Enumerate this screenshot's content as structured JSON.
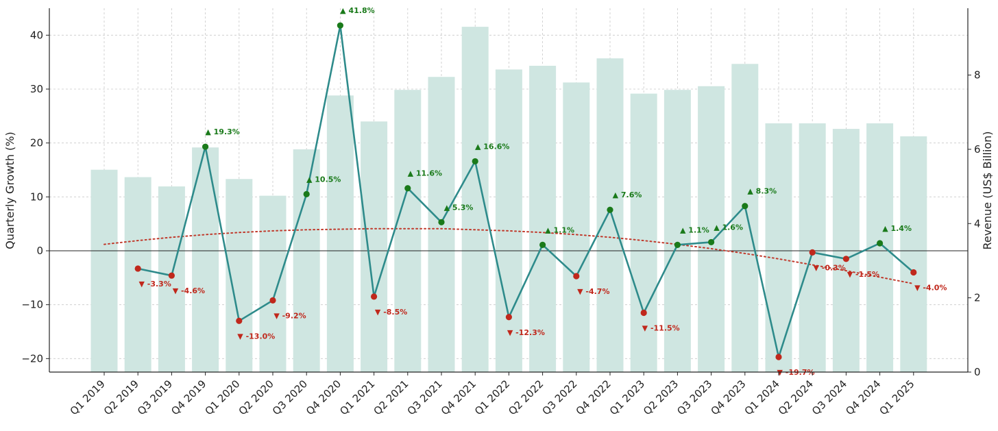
{
  "chart_data": {
    "type": "bar+line",
    "categories": [
      "Q1 2019",
      "Q2 2019",
      "Q3 2019",
      "Q4 2019",
      "Q1 2020",
      "Q2 2020",
      "Q3 2020",
      "Q4 2020",
      "Q1 2021",
      "Q2 2021",
      "Q3 2021",
      "Q4 2021",
      "Q1 2022",
      "Q2 2022",
      "Q3 2022",
      "Q4 2022",
      "Q1 2023",
      "Q2 2023",
      "Q3 2023",
      "Q4 2023",
      "Q1 2024",
      "Q2 2024",
      "Q3 2024",
      "Q4 2024",
      "Q1 2025"
    ],
    "series": [
      {
        "kind": "bar",
        "axis": "right",
        "values": [
          5.45,
          5.25,
          5.0,
          6.05,
          5.2,
          4.75,
          6.0,
          7.45,
          6.75,
          7.6,
          7.95,
          9.3,
          8.15,
          8.25,
          7.8,
          8.45,
          7.5,
          7.6,
          7.7,
          8.3,
          6.7,
          6.7,
          6.55,
          6.7,
          6.35
        ],
        "color": "#cfe6e1"
      },
      {
        "kind": "line",
        "axis": "left",
        "values": [
          null,
          -3.3,
          -4.6,
          19.3,
          -13.0,
          -9.2,
          10.5,
          41.8,
          -8.5,
          11.6,
          5.3,
          16.6,
          -12.3,
          1.1,
          -4.7,
          7.6,
          -11.5,
          1.1,
          1.6,
          8.3,
          -19.7,
          -0.3,
          -1.5,
          1.4,
          -4.0
        ],
        "labels": [
          "",
          "▼ -3.3%",
          "▼ -4.6%",
          "▲ 19.3%",
          "▼ -13.0%",
          "▼ -9.2%",
          "▲ 10.5%",
          "▲ 41.8%",
          "▼ -8.5%",
          "▲ 11.6%",
          "▲ 5.3%",
          "▲ 16.6%",
          "▼ -12.3%",
          "▲ 1.1%",
          "▼ -4.7%",
          "▲ 7.6%",
          "▼ -11.5%",
          "▲ 1.1%",
          "▲ 1.6%",
          "▲ 8.3%",
          "▼ -19.7%",
          "▼ -0.3%",
          "▼ -1.5%",
          "▲ 1.4%",
          "▼ -4.0%"
        ],
        "color": "#2e8b8b",
        "positive_color": "#1a7a1a",
        "negative_color": "#c0281c"
      },
      {
        "kind": "trend",
        "axis": "left",
        "style": "dotted",
        "values": [
          1.2,
          1.9,
          2.5,
          3.0,
          3.4,
          3.7,
          3.9,
          4.0,
          4.1,
          4.1,
          4.1,
          3.9,
          3.7,
          3.4,
          3.0,
          2.5,
          1.9,
          1.2,
          0.4,
          -0.5,
          -1.5,
          -2.6,
          -3.7,
          -4.9,
          -6.1
        ],
        "color": "#c0392b"
      }
    ],
    "y_left": {
      "label": "Quarterly Growth (%)",
      "lim": [
        -22.5,
        45
      ],
      "ticks": [
        -20,
        -10,
        0,
        10,
        20,
        30,
        40
      ],
      "tick_labels": [
        "−20",
        "−10",
        "0",
        "10",
        "20",
        "30",
        "40"
      ]
    },
    "y_right": {
      "label": "Revenue (US$ Billion)",
      "lim": [
        0,
        9.8
      ],
      "ticks": [
        0,
        2,
        4,
        6,
        8
      ],
      "tick_labels": [
        "0",
        "2",
        "4",
        "6",
        "8"
      ]
    },
    "grid": true
  }
}
